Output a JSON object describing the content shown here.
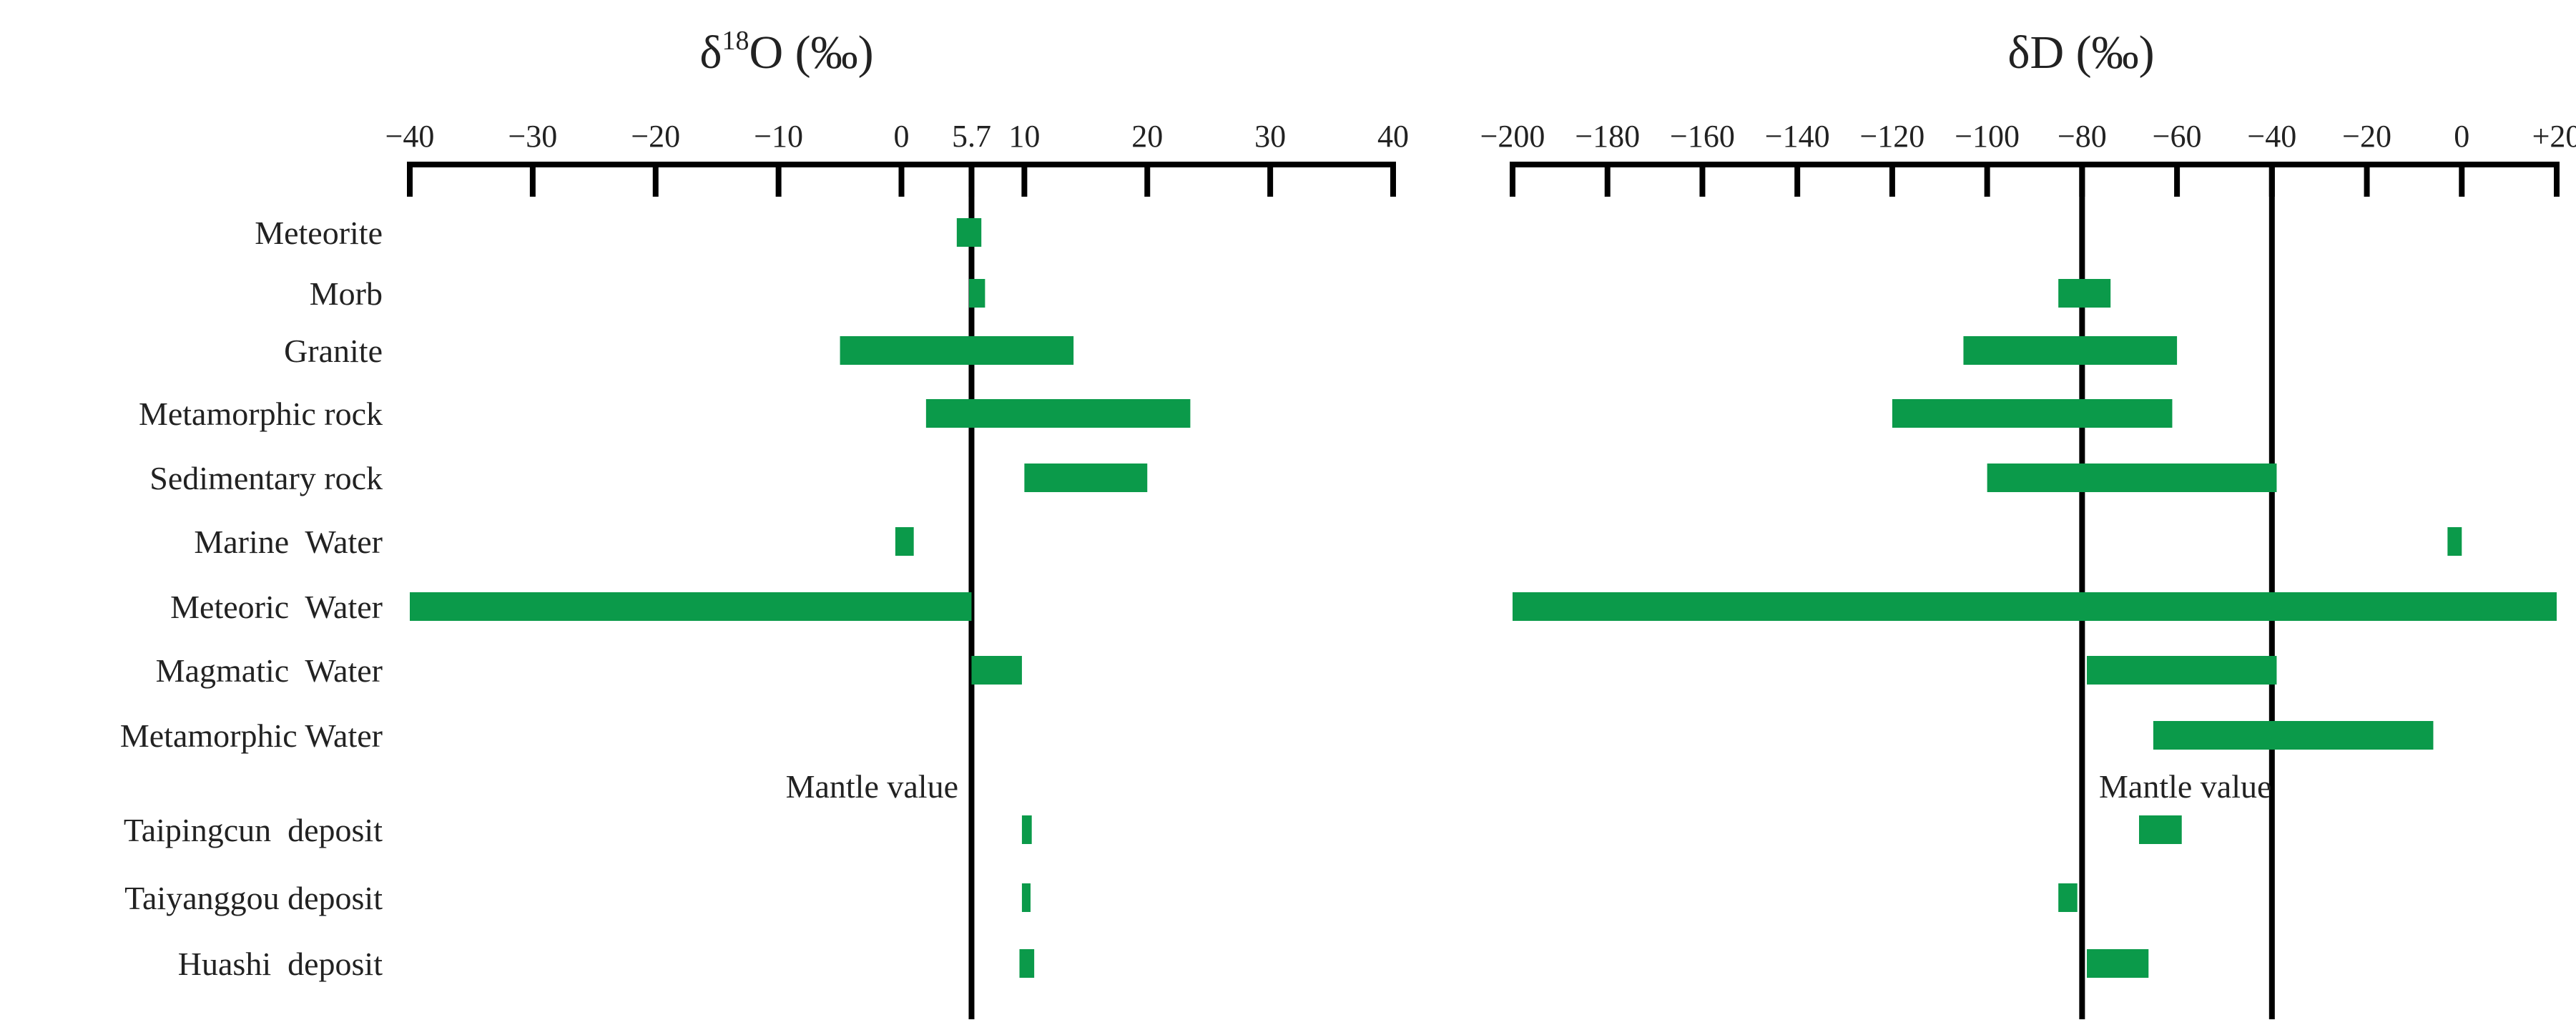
{
  "chart_data": [
    {
      "type": "bar",
      "orientation": "horizontal-range",
      "title_main": "δ",
      "title_sup": "18",
      "title_rest": "O  (‰)",
      "xlim": [
        -40,
        40
      ],
      "ticks": [
        -40,
        -30,
        -20,
        -10,
        0,
        5.7,
        10,
        20,
        30,
        40
      ],
      "tick_labels": [
        "−40",
        "−30",
        "−20",
        "−10",
        "0",
        "5.7",
        "10",
        "20",
        "30",
        "40"
      ],
      "reference_lines": [
        {
          "value": 5.7,
          "label": "Mantle value"
        }
      ],
      "categories": [
        "Meteorite",
        "Morb",
        "Granite",
        "Metamorphic rock",
        "Sedimentary rock",
        "Marine  Water",
        "Meteoric  Water",
        "Magmatic  Water",
        "Metamorphic Water",
        "Taipingcun  deposit",
        "Taiyanggou deposit",
        "Huashi  deposit"
      ],
      "ranges": [
        [
          4.5,
          6.5
        ],
        [
          5.5,
          6.8
        ],
        [
          -5,
          14
        ],
        [
          2,
          23.5
        ],
        [
          10,
          20
        ],
        [
          -0.5,
          1
        ],
        [
          -40,
          5.7
        ],
        [
          5.7,
          9.8
        ],
        null,
        [
          9.8,
          10.6
        ],
        [
          9.8,
          10.5
        ],
        [
          9.6,
          10.8
        ]
      ],
      "bar_color": "#0b9a4a"
    },
    {
      "type": "bar",
      "orientation": "horizontal-range",
      "title": "δD (‰)",
      "xlim": [
        -200,
        20
      ],
      "ticks": [
        -200,
        -180,
        -160,
        -140,
        -120,
        -100,
        -80,
        -60,
        -40,
        -20,
        0,
        20
      ],
      "tick_labels": [
        "−200",
        "−180",
        "−160",
        "−140",
        "−120",
        "−100",
        "−80",
        "−60",
        "−40",
        "−20",
        "0",
        "+20"
      ],
      "reference_lines": [
        {
          "value": -80,
          "label": "Mantle value"
        },
        {
          "value": -40,
          "label": ""
        }
      ],
      "categories": [
        "Meteorite",
        "Morb",
        "Granite",
        "Metamorphic rock",
        "Sedimentary rock",
        "Marine  Water",
        "Meteoric  Water",
        "Magmatic  Water",
        "Metamorphic Water",
        "Taipingcun  deposit",
        "Taiyanggou deposit",
        "Huashi  deposit"
      ],
      "ranges": [
        null,
        [
          -85,
          -74
        ],
        [
          -105,
          -60
        ],
        [
          -120,
          -61
        ],
        [
          -100,
          -39
        ],
        [
          -3,
          0
        ],
        [
          -200,
          20
        ],
        [
          -79,
          -39
        ],
        [
          -65,
          -6
        ],
        [
          -68,
          -59
        ],
        [
          -85,
          -81
        ],
        [
          -79,
          -66
        ]
      ],
      "bar_color": "#0b9a4a"
    }
  ]
}
